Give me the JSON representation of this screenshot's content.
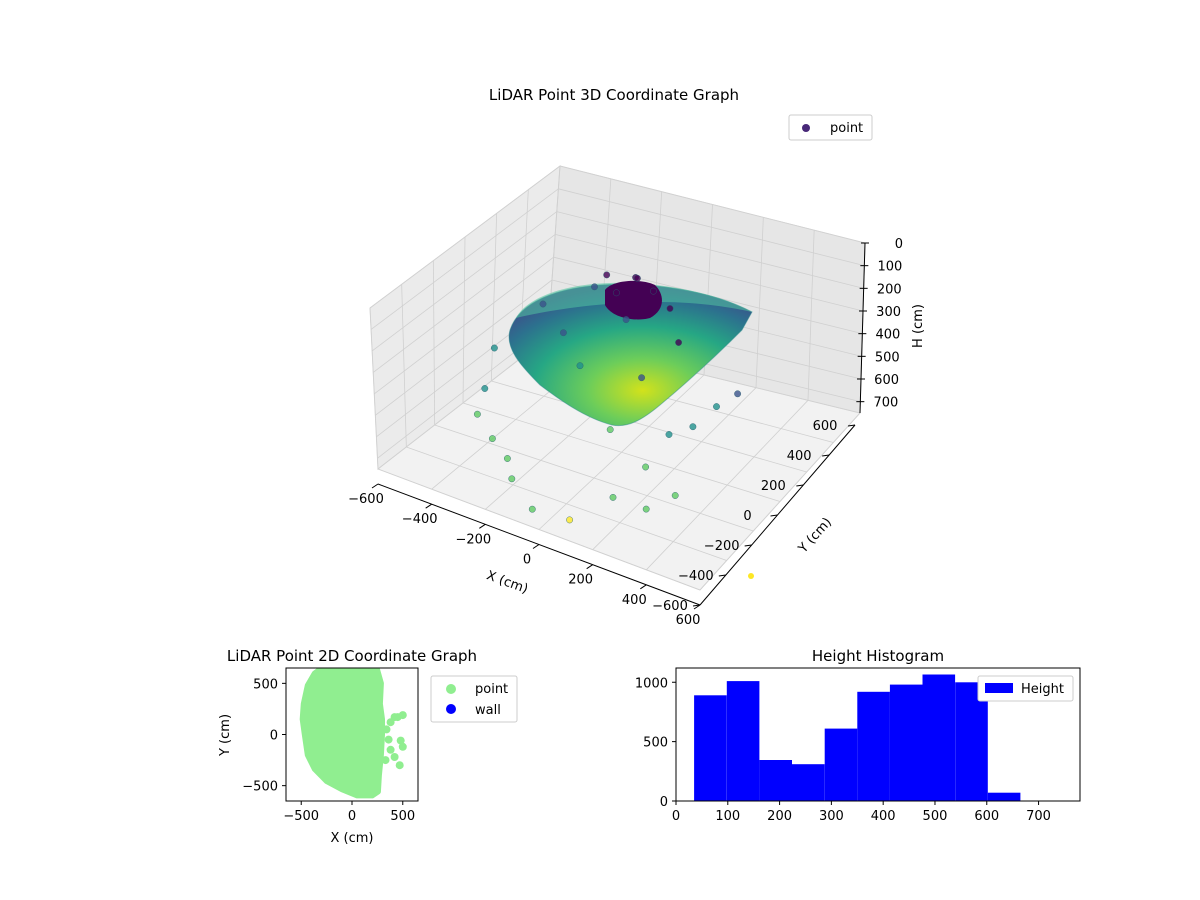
{
  "chart_data": [
    {
      "type": "scatter3d",
      "title": "LiDAR Point 3D Coordinate Graph",
      "xlabel": "X (cm)",
      "ylabel": "Y (cm)",
      "zlabel": "H (cm)",
      "xlim": [
        -600,
        600
      ],
      "ylim": [
        -600,
        600
      ],
      "zlim": [
        0,
        750
      ],
      "z_inverted": true,
      "xticks": [
        -600,
        -400,
        -200,
        0,
        200,
        400,
        600
      ],
      "yticks": [
        -600,
        -400,
        -200,
        0,
        200,
        400,
        600
      ],
      "zticks": [
        0,
        100,
        200,
        300,
        400,
        500,
        600,
        700
      ],
      "colormap": "viridis",
      "legend": {
        "position": "top-right",
        "entries": [
          {
            "name": "point",
            "color": "#482878"
          }
        ]
      },
      "grid": true,
      "sample_points": [
        {
          "x": -250,
          "y": 250,
          "h": 250
        },
        {
          "x": -120,
          "y": 380,
          "h": 200
        },
        {
          "x": 0,
          "y": 450,
          "h": 150
        },
        {
          "x": 100,
          "y": 380,
          "h": 120
        },
        {
          "x": 200,
          "y": 300,
          "h": 100
        },
        {
          "x": 280,
          "y": 200,
          "h": 150
        },
        {
          "x": -350,
          "y": 80,
          "h": 380
        },
        {
          "x": -300,
          "y": -100,
          "h": 420
        },
        {
          "x": -200,
          "y": -250,
          "h": 500
        },
        {
          "x": -80,
          "y": -350,
          "h": 560
        },
        {
          "x": 30,
          "y": -420,
          "h": 600
        },
        {
          "x": 150,
          "y": -380,
          "h": 620
        },
        {
          "x": 250,
          "y": -250,
          "h": 560
        },
        {
          "x": 300,
          "y": -100,
          "h": 500
        },
        {
          "x": 120,
          "y": 0,
          "h": 480
        },
        {
          "x": -50,
          "y": 120,
          "h": 350
        },
        {
          "x": 180,
          "y": 120,
          "h": 300
        },
        {
          "x": 330,
          "y": 20,
          "h": 420
        },
        {
          "x": 400,
          "y": 60,
          "h": 380
        },
        {
          "x": 450,
          "y": 140,
          "h": 320
        },
        {
          "x": 500,
          "y": 200,
          "h": 280
        },
        {
          "x": 350,
          "y": -200,
          "h": 600
        },
        {
          "x": 420,
          "y": -120,
          "h": 560
        },
        {
          "x": -150,
          "y": 200,
          "h": 300
        },
        {
          "x": 60,
          "y": 250,
          "h": 180
        },
        {
          "x": 0,
          "y": 300,
          "h": 120
        },
        {
          "x": -60,
          "y": 350,
          "h": 100
        },
        {
          "x": 40,
          "y": 380,
          "h": 90
        },
        {
          "x": -280,
          "y": -200,
          "h": 460
        },
        {
          "x": -120,
          "y": -300,
          "h": 520
        }
      ]
    },
    {
      "type": "scatter",
      "title": "LiDAR Point 2D Coordinate Graph",
      "xlabel": "X (cm)",
      "ylabel": "Y (cm)",
      "xlim": [
        -650,
        650
      ],
      "ylim": [
        -650,
        650
      ],
      "xticks": [
        -500,
        0,
        500
      ],
      "yticks": [
        -500,
        0,
        500
      ],
      "legend": {
        "position": "outside-right",
        "entries": [
          {
            "name": "point",
            "color": "#90ee90"
          },
          {
            "name": "wall",
            "color": "#0000ff"
          }
        ]
      },
      "outline": [
        [
          -250,
          650
        ],
        [
          -100,
          650
        ],
        [
          100,
          650
        ],
        [
          250,
          640
        ],
        [
          290,
          500
        ],
        [
          280,
          300
        ],
        [
          300,
          150
        ],
        [
          300,
          0
        ],
        [
          290,
          -200
        ],
        [
          270,
          -400
        ],
        [
          260,
          -560
        ],
        [
          200,
          -600
        ],
        [
          50,
          -600
        ],
        [
          -100,
          -540
        ],
        [
          -250,
          -460
        ],
        [
          -370,
          -340
        ],
        [
          -440,
          -200
        ],
        [
          -470,
          0
        ],
        [
          -490,
          150
        ],
        [
          -480,
          300
        ],
        [
          -440,
          480
        ],
        [
          -370,
          600
        ],
        [
          -300,
          650
        ]
      ],
      "outliers": [
        {
          "x": 420,
          "y": 170
        },
        {
          "x": 500,
          "y": 190
        },
        {
          "x": 450,
          "y": 170
        },
        {
          "x": 380,
          "y": 120
        },
        {
          "x": 480,
          "y": -60
        },
        {
          "x": 500,
          "y": -120
        },
        {
          "x": 470,
          "y": -300
        },
        {
          "x": 420,
          "y": -220
        },
        {
          "x": 380,
          "y": -150
        },
        {
          "x": 360,
          "y": -50
        },
        {
          "x": 340,
          "y": 50
        },
        {
          "x": 330,
          "y": -250
        }
      ]
    },
    {
      "type": "bar",
      "title": "Height Histogram",
      "xlim": [
        0,
        780
      ],
      "ylim": [
        0,
        1120
      ],
      "xticks": [
        0,
        100,
        200,
        300,
        400,
        500,
        600,
        700
      ],
      "yticks": [
        0,
        500,
        1000
      ],
      "legend": {
        "position": "top-right",
        "entries": [
          {
            "name": "Height",
            "color": "#0000ff"
          }
        ]
      },
      "bins": [
        {
          "x0": 35,
          "x1": 98,
          "value": 890
        },
        {
          "x0": 98,
          "x1": 161,
          "value": 1010
        },
        {
          "x0": 161,
          "x1": 224,
          "value": 345
        },
        {
          "x0": 224,
          "x1": 287,
          "value": 310
        },
        {
          "x0": 287,
          "x1": 350,
          "value": 610
        },
        {
          "x0": 350,
          "x1": 413,
          "value": 920
        },
        {
          "x0": 413,
          "x1": 476,
          "value": 980
        },
        {
          "x0": 476,
          "x1": 539,
          "value": 1065
        },
        {
          "x0": 539,
          "x1": 602,
          "value": 1000
        },
        {
          "x0": 602,
          "x1": 665,
          "value": 70
        }
      ]
    }
  ]
}
